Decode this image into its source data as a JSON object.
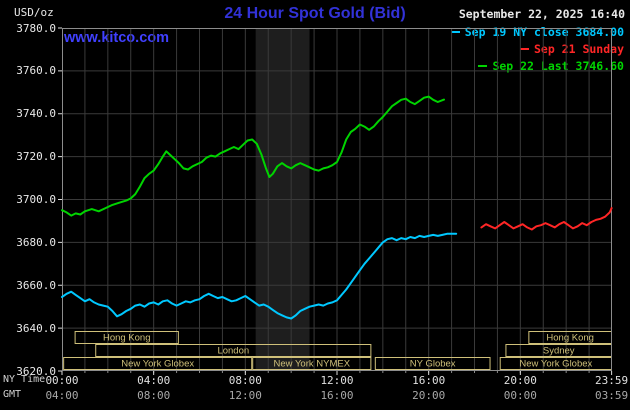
{
  "header": {
    "unit_label": "USD/oz",
    "title": "24 Hour Spot Gold (Bid)",
    "site_link": "www.kitco.com",
    "datetime": "September 22, 2025 16:40"
  },
  "legend": {
    "items": [
      {
        "label": "Sep 19 NY close 3684.00",
        "color": "#00c8ff"
      },
      {
        "label": "Sep 21 Sunday",
        "color": "#ff2626"
      },
      {
        "label": "Sep 22 Last 3746.60",
        "color": "#00d400"
      }
    ]
  },
  "axes": {
    "x_row1_label": "NY Time",
    "x_row2_label": "GMT",
    "y_ticks": [
      "3780.0",
      "3760.0",
      "3740.0",
      "3720.0",
      "3700.0",
      "3680.0",
      "3660.0",
      "3640.0",
      "3620.0"
    ],
    "x_ticks": [
      {
        "h": 0,
        "ny": "00:00",
        "gmt": "04:00"
      },
      {
        "h": 4,
        "ny": "04:00",
        "gmt": "08:00"
      },
      {
        "h": 8,
        "ny": "08:00",
        "gmt": "12:00"
      },
      {
        "h": 12,
        "ny": "12:00",
        "gmt": "16:00"
      },
      {
        "h": 16,
        "ny": "16:00",
        "gmt": "20:00"
      },
      {
        "h": 20,
        "ny": "20:00",
        "gmt": "00:00"
      },
      {
        "h": 23.983,
        "ny": "23:59",
        "gmt": "03:59"
      }
    ]
  },
  "colors": {
    "title_blue": "#3232d8",
    "link_blue": "#4040ff",
    "grid": "#3a3a3a",
    "plot_border": "#8c8c8c",
    "session": "#cfc07a",
    "band": "#1e1e1e",
    "tick": "#dddddd"
  },
  "chart_data": {
    "type": "line",
    "title": "24 Hour Spot Gold (Bid)",
    "xlabel": "NY Time (hours)",
    "ylabel": "USD/oz",
    "xlim": [
      0,
      24
    ],
    "ylim": [
      3620,
      3780
    ],
    "y_step": 20,
    "grid": true,
    "legend_position": "top-right",
    "shaded_band": {
      "x_start": 8.45,
      "x_end": 10.8
    },
    "series": [
      {
        "name": "Sep 19 NY close 3684.00",
        "color": "#00c8ff",
        "points": [
          [
            0,
            3654.5
          ],
          [
            0.2,
            3656
          ],
          [
            0.4,
            3657
          ],
          [
            0.6,
            3655.5
          ],
          [
            0.8,
            3654
          ],
          [
            1,
            3652.5
          ],
          [
            1.2,
            3653.5
          ],
          [
            1.4,
            3652
          ],
          [
            1.6,
            3651
          ],
          [
            1.8,
            3650.5
          ],
          [
            2,
            3650
          ],
          [
            2.2,
            3648
          ],
          [
            2.4,
            3645.5
          ],
          [
            2.6,
            3646.5
          ],
          [
            2.8,
            3648
          ],
          [
            3,
            3649
          ],
          [
            3.2,
            3650.5
          ],
          [
            3.4,
            3651
          ],
          [
            3.6,
            3650
          ],
          [
            3.8,
            3651.5
          ],
          [
            4,
            3652
          ],
          [
            4.2,
            3651
          ],
          [
            4.4,
            3652.5
          ],
          [
            4.6,
            3653
          ],
          [
            4.8,
            3651.5
          ],
          [
            5,
            3650.5
          ],
          [
            5.2,
            3651.5
          ],
          [
            5.4,
            3652.5
          ],
          [
            5.6,
            3652
          ],
          [
            5.8,
            3653
          ],
          [
            6,
            3653.5
          ],
          [
            6.2,
            3655
          ],
          [
            6.4,
            3656
          ],
          [
            6.6,
            3655
          ],
          [
            6.8,
            3654
          ],
          [
            7,
            3654.5
          ],
          [
            7.2,
            3653.5
          ],
          [
            7.4,
            3652.5
          ],
          [
            7.6,
            3653
          ],
          [
            7.8,
            3654
          ],
          [
            8,
            3655
          ],
          [
            8.2,
            3653.5
          ],
          [
            8.4,
            3652
          ],
          [
            8.6,
            3650.5
          ],
          [
            8.8,
            3651
          ],
          [
            9,
            3650
          ],
          [
            9.2,
            3648.5
          ],
          [
            9.4,
            3647
          ],
          [
            9.6,
            3646
          ],
          [
            9.8,
            3645
          ],
          [
            10,
            3644.5
          ],
          [
            10.2,
            3646
          ],
          [
            10.4,
            3648
          ],
          [
            10.6,
            3649
          ],
          [
            10.8,
            3650
          ],
          [
            11,
            3650.5
          ],
          [
            11.2,
            3651
          ],
          [
            11.4,
            3650.5
          ],
          [
            11.6,
            3651.5
          ],
          [
            11.8,
            3652
          ],
          [
            12,
            3653
          ],
          [
            12.2,
            3655.5
          ],
          [
            12.4,
            3658
          ],
          [
            12.6,
            3661
          ],
          [
            12.8,
            3664
          ],
          [
            13,
            3667
          ],
          [
            13.2,
            3670
          ],
          [
            13.4,
            3672.5
          ],
          [
            13.6,
            3675
          ],
          [
            13.8,
            3677.5
          ],
          [
            14,
            3680
          ],
          [
            14.2,
            3681.5
          ],
          [
            14.4,
            3682
          ],
          [
            14.6,
            3681
          ],
          [
            14.8,
            3682
          ],
          [
            15,
            3681.5
          ],
          [
            15.2,
            3682.5
          ],
          [
            15.4,
            3682
          ],
          [
            15.6,
            3683
          ],
          [
            15.8,
            3682.5
          ],
          [
            16,
            3683
          ],
          [
            16.2,
            3683.5
          ],
          [
            16.4,
            3683
          ],
          [
            16.6,
            3683.5
          ],
          [
            16.8,
            3684
          ],
          [
            17,
            3684
          ],
          [
            17.2,
            3684
          ]
        ]
      },
      {
        "name": "Sep 21 Sunday",
        "color": "#ff2626",
        "points": [
          [
            18.3,
            3687
          ],
          [
            18.5,
            3688.5
          ],
          [
            18.7,
            3687.5
          ],
          [
            18.9,
            3686.5
          ],
          [
            19.1,
            3688
          ],
          [
            19.3,
            3689.5
          ],
          [
            19.5,
            3688
          ],
          [
            19.7,
            3686.5
          ],
          [
            19.9,
            3687.5
          ],
          [
            20.1,
            3688.5
          ],
          [
            20.3,
            3687
          ],
          [
            20.5,
            3686
          ],
          [
            20.7,
            3687.5
          ],
          [
            20.9,
            3688
          ],
          [
            21.1,
            3689
          ],
          [
            21.3,
            3688
          ],
          [
            21.5,
            3687
          ],
          [
            21.7,
            3688.5
          ],
          [
            21.9,
            3689.5
          ],
          [
            22.1,
            3688
          ],
          [
            22.3,
            3686.5
          ],
          [
            22.5,
            3687.5
          ],
          [
            22.7,
            3689
          ],
          [
            22.9,
            3688
          ],
          [
            23.1,
            3689.5
          ],
          [
            23.3,
            3690.5
          ],
          [
            23.5,
            3691
          ],
          [
            23.7,
            3692
          ],
          [
            23.9,
            3694
          ],
          [
            23.983,
            3696
          ]
        ]
      },
      {
        "name": "Sep 22 Last 3746.60",
        "color": "#00d400",
        "points": [
          [
            0,
            3695
          ],
          [
            0.2,
            3694
          ],
          [
            0.4,
            3692.5
          ],
          [
            0.6,
            3693.5
          ],
          [
            0.8,
            3693
          ],
          [
            1,
            3694.5
          ],
          [
            1.3,
            3695.5
          ],
          [
            1.6,
            3694.5
          ],
          [
            1.9,
            3696
          ],
          [
            2.2,
            3697.5
          ],
          [
            2.5,
            3698.5
          ],
          [
            2.8,
            3699.5
          ],
          [
            3,
            3700.5
          ],
          [
            3.2,
            3702.5
          ],
          [
            3.4,
            3706
          ],
          [
            3.6,
            3710
          ],
          [
            3.8,
            3712
          ],
          [
            4,
            3713.5
          ],
          [
            4.2,
            3716.5
          ],
          [
            4.4,
            3720
          ],
          [
            4.55,
            3722.5
          ],
          [
            4.7,
            3721
          ],
          [
            4.9,
            3719
          ],
          [
            5.1,
            3717
          ],
          [
            5.3,
            3714.5
          ],
          [
            5.5,
            3714
          ],
          [
            5.7,
            3715.5
          ],
          [
            5.9,
            3716.5
          ],
          [
            6.1,
            3717.5
          ],
          [
            6.3,
            3719.5
          ],
          [
            6.5,
            3720.5
          ],
          [
            6.7,
            3720
          ],
          [
            6.9,
            3721.5
          ],
          [
            7.1,
            3722.5
          ],
          [
            7.3,
            3723.5
          ],
          [
            7.5,
            3724.5
          ],
          [
            7.7,
            3723.5
          ],
          [
            7.9,
            3725.5
          ],
          [
            8.1,
            3727.5
          ],
          [
            8.3,
            3728
          ],
          [
            8.5,
            3726
          ],
          [
            8.7,
            3721
          ],
          [
            8.9,
            3714.5
          ],
          [
            9.05,
            3710.5
          ],
          [
            9.2,
            3712
          ],
          [
            9.4,
            3715.5
          ],
          [
            9.6,
            3717
          ],
          [
            9.8,
            3715.5
          ],
          [
            10,
            3714.5
          ],
          [
            10.2,
            3716
          ],
          [
            10.4,
            3717
          ],
          [
            10.6,
            3716
          ],
          [
            10.8,
            3715
          ],
          [
            11,
            3714
          ],
          [
            11.2,
            3713.5
          ],
          [
            11.4,
            3714.5
          ],
          [
            11.6,
            3715
          ],
          [
            11.8,
            3716
          ],
          [
            12,
            3717.5
          ],
          [
            12.2,
            3722
          ],
          [
            12.4,
            3728
          ],
          [
            12.6,
            3731.5
          ],
          [
            12.8,
            3733
          ],
          [
            13,
            3735
          ],
          [
            13.2,
            3734
          ],
          [
            13.4,
            3732.5
          ],
          [
            13.6,
            3734
          ],
          [
            13.8,
            3736.5
          ],
          [
            14,
            3738.5
          ],
          [
            14.2,
            3741
          ],
          [
            14.4,
            3743.5
          ],
          [
            14.6,
            3745
          ],
          [
            14.8,
            3746.5
          ],
          [
            15,
            3747
          ],
          [
            15.2,
            3745.5
          ],
          [
            15.4,
            3744.5
          ],
          [
            15.6,
            3746
          ],
          [
            15.8,
            3747.5
          ],
          [
            16,
            3748
          ],
          [
            16.2,
            3746.5
          ],
          [
            16.4,
            3745.5
          ],
          [
            16.67,
            3746.6
          ]
        ]
      }
    ],
    "sessions": [
      {
        "row": 0,
        "start": 0.55,
        "end": 5.1,
        "label": "Hong Kong"
      },
      {
        "row": 0,
        "start": 20.35,
        "end": 24,
        "label": "Hong Kong"
      },
      {
        "row": 1,
        "start": 1.45,
        "end": 13.5,
        "label": "London"
      },
      {
        "row": 1,
        "start": 19.35,
        "end": 24,
        "label": "Sydney"
      },
      {
        "row": 2,
        "start": 0.05,
        "end": 8.3,
        "label": "New York Globex"
      },
      {
        "row": 2,
        "start": 8.3,
        "end": 13.5,
        "label": "New York NYMEX"
      },
      {
        "row": 2,
        "start": 13.65,
        "end": 18.7,
        "label": "NY Globex"
      },
      {
        "row": 2,
        "start": 19.1,
        "end": 24,
        "label": "New York Globex"
      }
    ]
  }
}
